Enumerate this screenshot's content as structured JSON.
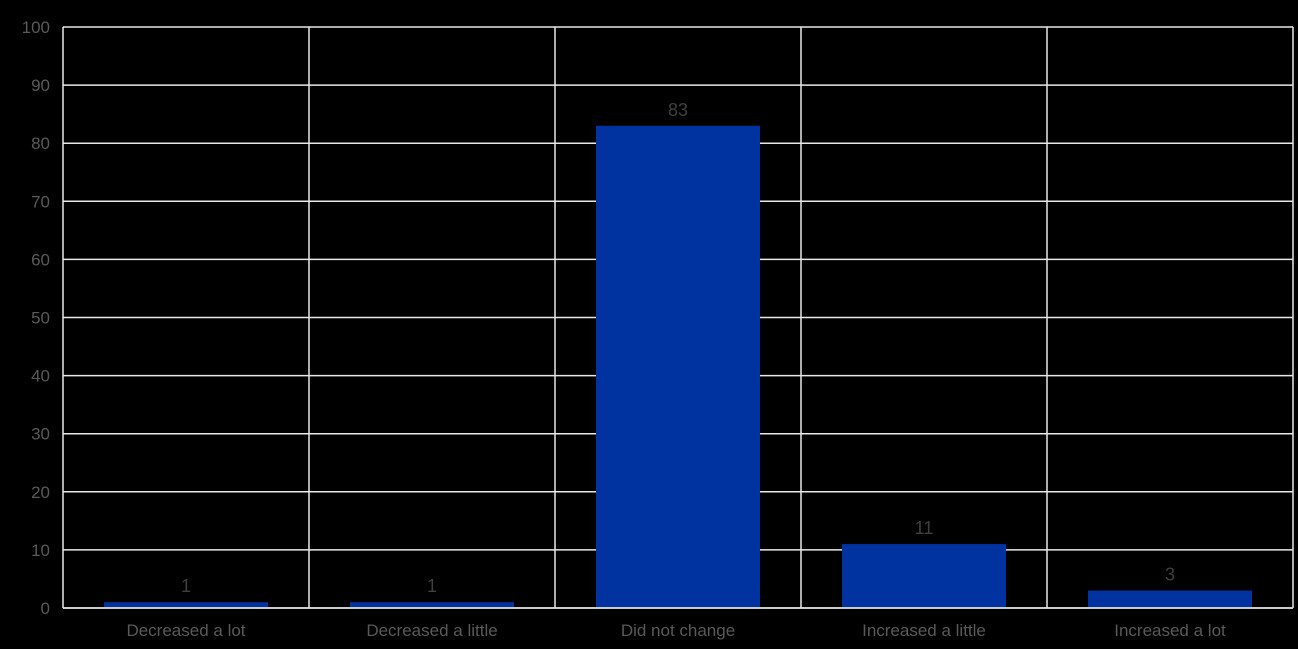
{
  "chart_data": {
    "type": "bar",
    "categories": [
      "Decreased a lot",
      "Decreased a little",
      "Did not change",
      "Increased a little",
      "Increased a lot"
    ],
    "values": [
      1,
      1,
      83,
      11,
      3
    ],
    "data_labels": [
      "1",
      "1",
      "83",
      "11",
      "3"
    ],
    "xlabel": "",
    "ylabel": "",
    "ylim": [
      0,
      100
    ],
    "ytick_interval": 10,
    "ytick_labels": [
      "0",
      "10",
      "20",
      "30",
      "40",
      "50",
      "60",
      "70",
      "80",
      "90",
      "100"
    ],
    "grid": {
      "horizontal": true,
      "vertical": true
    },
    "legend_position": "none",
    "colors": {
      "background": "#000000",
      "bar_fill": "#0033A0",
      "gridline": "#E8E8E8",
      "axis_text": "#595959",
      "data_label_text": "#3F3F3F"
    }
  }
}
